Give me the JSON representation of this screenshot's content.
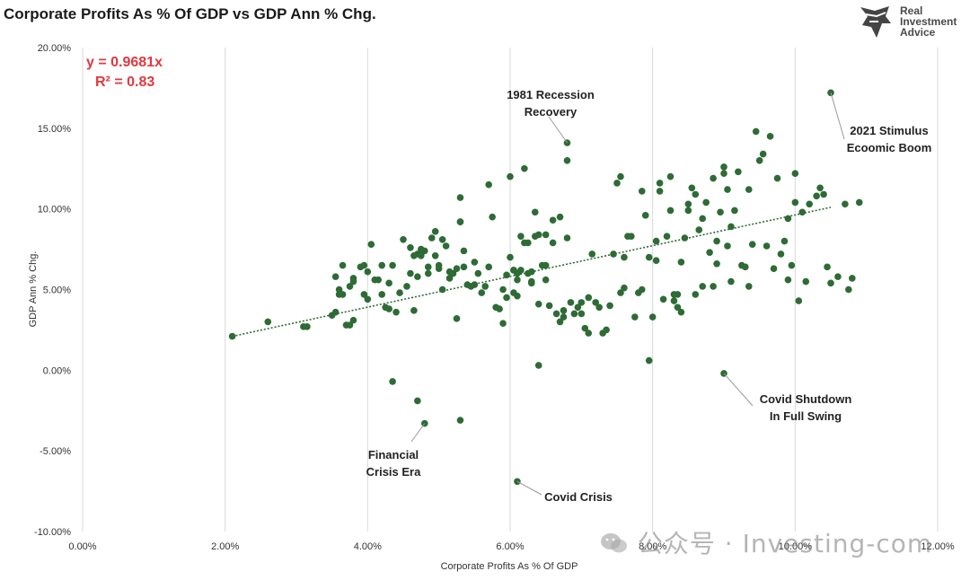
{
  "header": {
    "title": "Corporate Profits As % Of GDP vs GDP Ann % Chg."
  },
  "logo": {
    "line1": "Real",
    "line2": "Investment",
    "line3": "Advice",
    "icon": "bull-head-icon"
  },
  "watermark": {
    "text": "公众号 · Investing-com",
    "icon": "wechat-icon"
  },
  "equation": {
    "line1": "y = 0.9681x",
    "line2": "R² = 0.83",
    "color": "#e0383e"
  },
  "annotations": [
    {
      "id": "recession-1981",
      "lines": [
        "1981 Recession",
        "Recovery"
      ],
      "point": [
        6.8,
        14.1
      ]
    },
    {
      "id": "stimulus-2021",
      "lines": [
        "2021 Stimulus",
        "Ecoomic Boom"
      ],
      "point": [
        10.5,
        17.2
      ]
    },
    {
      "id": "covid-shutdown",
      "lines": [
        "Covid Shutdown",
        "In Full Swing"
      ],
      "point": [
        9.0,
        -0.2
      ]
    },
    {
      "id": "financial-crisis",
      "lines": [
        "Financial",
        "Crisis Era"
      ],
      "point": [
        4.8,
        -3.3
      ]
    },
    {
      "id": "covid-crisis",
      "lines": [
        "Covid Crisis"
      ],
      "point": [
        6.1,
        -6.9
      ]
    }
  ],
  "chart_data": {
    "type": "scatter",
    "title": "Corporate Profits As % Of GDP vs GDP Ann % Chg.",
    "xlabel": "Corporate Profits As % Of GDP",
    "ylabel": "GDP Ann % Chg.",
    "xlim": [
      0,
      12
    ],
    "ylim": [
      -10,
      20
    ],
    "x_ticks": [
      "0.00%",
      "2.00%",
      "4.00%",
      "6.00%",
      "8.00%",
      "10.00%",
      "12.00%"
    ],
    "y_ticks": [
      "-10.00%",
      "-5.00%",
      "0.00%",
      "5.00%",
      "10.00%",
      "15.00%",
      "20.00%"
    ],
    "grid": "vertical",
    "point_color": "#2e6b35",
    "trendline": {
      "label": "y = 0.9681x",
      "r2": "R² = 0.83",
      "style": "dotted",
      "x_range": [
        2.1,
        10.5
      ],
      "y_range": [
        2.1,
        10.1
      ]
    },
    "series": [
      {
        "points": [
          [
            2.1,
            2.1
          ],
          [
            2.6,
            3.0
          ],
          [
            3.1,
            2.7
          ],
          [
            3.15,
            2.7
          ],
          [
            3.5,
            3.4
          ],
          [
            3.55,
            3.6
          ],
          [
            3.55,
            5.8
          ],
          [
            3.6,
            5.0
          ],
          [
            3.6,
            4.7
          ],
          [
            3.65,
            6.5
          ],
          [
            3.7,
            2.8
          ],
          [
            3.75,
            2.8
          ],
          [
            3.75,
            5.2
          ],
          [
            3.8,
            5.5
          ],
          [
            3.8,
            5.7
          ],
          [
            3.8,
            3.1
          ],
          [
            3.9,
            6.4
          ],
          [
            3.95,
            6.5
          ],
          [
            3.95,
            4.7
          ],
          [
            4.0,
            4.4
          ],
          [
            4.0,
            6.1
          ],
          [
            4.05,
            7.8
          ],
          [
            4.1,
            5.6
          ],
          [
            4.15,
            5.6
          ],
          [
            4.2,
            6.5
          ],
          [
            4.2,
            4.7
          ],
          [
            4.25,
            3.9
          ],
          [
            4.3,
            3.8
          ],
          [
            4.3,
            5.4
          ],
          [
            4.35,
            6.5
          ],
          [
            4.4,
            3.6
          ],
          [
            4.45,
            4.8
          ],
          [
            4.5,
            8.1
          ],
          [
            4.55,
            5.2
          ],
          [
            4.6,
            6.0
          ],
          [
            4.65,
            7.1
          ],
          [
            4.65,
            3.7
          ],
          [
            4.7,
            7.2
          ],
          [
            4.7,
            5.8
          ],
          [
            4.75,
            7.5
          ],
          [
            4.8,
            7.4
          ],
          [
            4.85,
            6.4
          ],
          [
            4.85,
            6.0
          ],
          [
            4.9,
            8.2
          ],
          [
            4.95,
            8.6
          ],
          [
            4.95,
            7.1
          ],
          [
            5.0,
            6.5
          ],
          [
            5.0,
            6.3
          ],
          [
            5.05,
            5.0
          ],
          [
            5.05,
            8.1
          ],
          [
            5.1,
            7.7
          ],
          [
            5.15,
            5.7
          ],
          [
            5.2,
            6.0
          ],
          [
            5.25,
            6.3
          ],
          [
            5.3,
            9.2
          ],
          [
            5.35,
            7.4
          ],
          [
            5.35,
            6.4
          ],
          [
            5.4,
            5.3
          ],
          [
            5.45,
            5.2
          ],
          [
            5.5,
            5.3
          ],
          [
            5.5,
            6.7
          ],
          [
            5.55,
            6.0
          ],
          [
            5.6,
            4.8
          ],
          [
            5.65,
            5.2
          ],
          [
            5.7,
            11.5
          ],
          [
            5.75,
            9.5
          ],
          [
            5.8,
            3.9
          ],
          [
            5.85,
            3.8
          ],
          [
            5.9,
            2.9
          ],
          [
            5.9,
            5.0
          ],
          [
            5.95,
            5.9
          ],
          [
            5.95,
            4.5
          ],
          [
            6.0,
            12.0
          ],
          [
            6.0,
            7.0
          ],
          [
            6.05,
            6.2
          ],
          [
            6.05,
            4.8
          ],
          [
            6.1,
            6.0
          ],
          [
            6.1,
            5.6
          ],
          [
            6.1,
            4.6
          ],
          [
            6.15,
            6.2
          ],
          [
            6.15,
            8.3
          ],
          [
            6.2,
            12.5
          ],
          [
            6.25,
            6.0
          ],
          [
            6.25,
            7.9
          ],
          [
            6.3,
            6.1
          ],
          [
            6.3,
            5.4
          ],
          [
            6.35,
            8.3
          ],
          [
            6.35,
            9.8
          ],
          [
            6.4,
            4.1
          ],
          [
            6.4,
            8.4
          ],
          [
            6.45,
            6.5
          ],
          [
            6.5,
            8.4
          ],
          [
            6.5,
            5.6
          ],
          [
            6.55,
            4.0
          ],
          [
            6.6,
            9.3
          ],
          [
            6.6,
            7.9
          ],
          [
            6.65,
            3.5
          ],
          [
            6.7,
            3.0
          ],
          [
            6.7,
            9.5
          ],
          [
            6.75,
            3.3
          ],
          [
            6.75,
            3.7
          ],
          [
            6.8,
            8.2
          ],
          [
            6.8,
            13.0
          ],
          [
            6.85,
            4.2
          ],
          [
            6.9,
            3.5
          ],
          [
            6.95,
            3.9
          ],
          [
            7.0,
            4.2
          ],
          [
            7.0,
            3.5
          ],
          [
            7.05,
            2.6
          ],
          [
            7.1,
            4.5
          ],
          [
            7.1,
            2.3
          ],
          [
            7.15,
            7.2
          ],
          [
            7.2,
            4.2
          ],
          [
            7.25,
            3.9
          ],
          [
            7.3,
            2.3
          ],
          [
            7.35,
            2.5
          ],
          [
            7.4,
            4.0
          ],
          [
            7.45,
            7.2
          ],
          [
            7.5,
            11.6
          ],
          [
            7.55,
            12.0
          ],
          [
            7.55,
            4.8
          ],
          [
            7.6,
            5.1
          ],
          [
            7.6,
            7.0
          ],
          [
            7.65,
            8.3
          ],
          [
            7.7,
            8.3
          ],
          [
            7.75,
            3.3
          ],
          [
            7.8,
            4.8
          ],
          [
            7.85,
            5.0
          ],
          [
            7.85,
            11.1
          ],
          [
            7.9,
            9.6
          ],
          [
            7.95,
            7.0
          ],
          [
            8.0,
            3.3
          ],
          [
            8.05,
            6.8
          ],
          [
            8.05,
            8.0
          ],
          [
            8.1,
            11.1
          ],
          [
            8.1,
            11.6
          ],
          [
            8.15,
            4.4
          ],
          [
            8.2,
            8.3
          ],
          [
            8.25,
            12.0
          ],
          [
            8.25,
            9.9
          ],
          [
            8.3,
            4.7
          ],
          [
            8.3,
            4.3
          ],
          [
            8.35,
            4.7
          ],
          [
            8.35,
            3.9
          ],
          [
            8.4,
            6.7
          ],
          [
            8.4,
            3.6
          ],
          [
            8.45,
            8.2
          ],
          [
            8.5,
            10.3
          ],
          [
            8.5,
            9.9
          ],
          [
            8.55,
            11.3
          ],
          [
            8.6,
            4.7
          ],
          [
            8.6,
            10.9
          ],
          [
            8.65,
            8.7
          ],
          [
            8.7,
            9.4
          ],
          [
            8.75,
            10.4
          ],
          [
            8.8,
            7.3
          ],
          [
            8.85,
            11.9
          ],
          [
            8.85,
            5.2
          ],
          [
            8.9,
            6.6
          ],
          [
            8.95,
            9.8
          ],
          [
            9.0,
            12.2
          ],
          [
            9.0,
            12.6
          ],
          [
            9.05,
            11.2
          ],
          [
            9.05,
            7.7
          ],
          [
            9.1,
            8.9
          ],
          [
            9.15,
            9.9
          ],
          [
            9.2,
            12.3
          ],
          [
            9.25,
            6.5
          ],
          [
            9.3,
            6.4
          ],
          [
            9.35,
            11.2
          ],
          [
            9.4,
            7.8
          ],
          [
            9.45,
            14.8
          ],
          [
            9.5,
            13.0
          ],
          [
            9.55,
            13.4
          ],
          [
            9.6,
            7.7
          ],
          [
            9.65,
            14.5
          ],
          [
            9.7,
            6.3
          ],
          [
            9.75,
            11.9
          ],
          [
            9.8,
            7.2
          ],
          [
            9.85,
            8.0
          ],
          [
            9.9,
            9.4
          ],
          [
            9.95,
            6.5
          ],
          [
            10.0,
            10.4
          ],
          [
            10.0,
            12.2
          ],
          [
            10.05,
            4.3
          ],
          [
            10.1,
            9.8
          ],
          [
            10.15,
            5.5
          ],
          [
            10.2,
            10.3
          ],
          [
            10.3,
            10.8
          ],
          [
            10.35,
            11.3
          ],
          [
            10.4,
            10.9
          ],
          [
            10.45,
            6.4
          ],
          [
            10.5,
            5.4
          ],
          [
            10.6,
            5.8
          ],
          [
            10.7,
            10.3
          ],
          [
            10.75,
            5.0
          ],
          [
            10.8,
            5.7
          ],
          [
            10.9,
            10.4
          ],
          [
            5.3,
            10.7
          ],
          [
            5.25,
            3.2
          ],
          [
            5.3,
            9.2
          ],
          [
            6.4,
            0.3
          ],
          [
            7.95,
            0.6
          ],
          [
            6.3,
            5.5
          ],
          [
            4.6,
            7.6
          ],
          [
            8.9,
            8.0
          ],
          [
            9.1,
            5.5
          ],
          [
            8.7,
            5.2
          ],
          [
            9.35,
            5.2
          ],
          [
            9.9,
            5.6
          ],
          [
            5.7,
            6.4
          ],
          [
            6.05,
            6.2
          ],
          [
            6.5,
            6.5
          ],
          [
            4.75,
            7.1
          ],
          [
            3.65,
            4.7
          ],
          [
            5.15,
            6.1
          ],
          [
            6.2,
            7.9
          ],
          [
            6.8,
            14.1
          ],
          [
            10.5,
            17.2
          ],
          [
            9.0,
            -0.2
          ],
          [
            4.8,
            -3.3
          ],
          [
            6.1,
            -6.9
          ],
          [
            4.35,
            -0.7
          ],
          [
            4.7,
            -1.9
          ],
          [
            5.3,
            -3.1
          ]
        ]
      }
    ]
  }
}
